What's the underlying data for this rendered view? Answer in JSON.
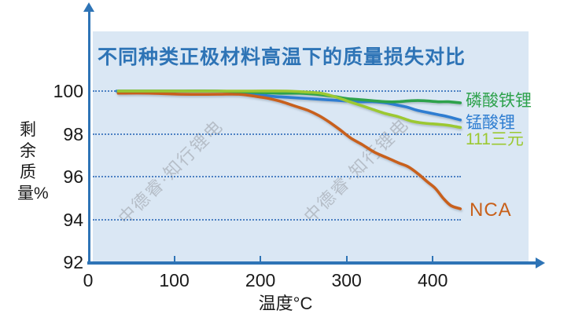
{
  "title": {
    "text": "不同种类正极材料高温下的质量损失对比",
    "color": "#2E74B6"
  },
  "watermark": {
    "text": "中德睿·知行锂电"
  },
  "axes": {
    "x_label": "温度°C",
    "y_label": "剩余质量%",
    "axis_color": "#2E74B6",
    "grid_color": "#3E76BE",
    "tick_text_color": "#1a1a1a",
    "panel_bg": "#DAE7F4"
  },
  "chart_data": {
    "type": "line",
    "title": "不同种类正极材料高温下的质量损失对比",
    "xlabel": "温度°C",
    "ylabel": "剩余质量%",
    "x_ticks": [
      0,
      100,
      200,
      300,
      400
    ],
    "y_ticks": [
      92,
      94,
      96,
      98,
      100
    ],
    "xlim": [
      0,
      525
    ],
    "ylim": [
      92,
      102.8
    ],
    "grid": "horizontal dotted lines at 94, 96, 98, 100",
    "legend_position": "labels at right ends of curves",
    "series": [
      {
        "name": "锰酸锂",
        "color": "#2E7DD1",
        "x": [
          33,
          70,
          110,
          150,
          175,
          195,
          215,
          235,
          255,
          275,
          295,
          315,
          330,
          345,
          358,
          370,
          382,
          394,
          406,
          418,
          432
        ],
        "y": [
          100,
          100,
          100,
          100,
          99.95,
          99.85,
          99.75,
          99.7,
          99.65,
          99.6,
          99.55,
          99.5,
          99.5,
          99.45,
          99.35,
          99.25,
          99.1,
          99.0,
          98.9,
          98.8,
          98.65
        ]
      },
      {
        "name": "NCA",
        "color": "#C8601A",
        "x": [
          35,
          70,
          110,
          150,
          175,
          195,
          210,
          225,
          240,
          255,
          268,
          280,
          292,
          305,
          318,
          332,
          346,
          360,
          372,
          384,
          394,
          403,
          412,
          421,
          432
        ],
        "y": [
          99.9,
          99.9,
          99.85,
          99.85,
          99.85,
          99.75,
          99.65,
          99.5,
          99.3,
          99.1,
          98.85,
          98.55,
          98.2,
          97.8,
          97.5,
          97.15,
          96.9,
          96.65,
          96.45,
          96.1,
          95.75,
          95.45,
          95.0,
          94.65,
          94.5
        ]
      },
      {
        "name": "磷酸铁锂",
        "color": "#2EA24C",
        "x": [
          35,
          70,
          110,
          150,
          190,
          220,
          245,
          265,
          285,
          300,
          315,
          330,
          345,
          360,
          375,
          390,
          405,
          418,
          432
        ],
        "y": [
          100,
          100,
          100,
          100,
          99.95,
          99.9,
          99.9,
          99.85,
          99.75,
          99.65,
          99.6,
          99.55,
          99.5,
          99.5,
          99.55,
          99.55,
          99.5,
          99.5,
          99.45
        ]
      },
      {
        "name": "111三元",
        "color": "#9CC831",
        "x": [
          35,
          70,
          110,
          150,
          190,
          230,
          255,
          270,
          285,
          300,
          315,
          330,
          345,
          360,
          375,
          390,
          405,
          418,
          432
        ],
        "y": [
          100,
          100,
          100,
          100,
          100,
          100,
          99.95,
          99.9,
          99.75,
          99.55,
          99.35,
          99.15,
          98.95,
          98.8,
          98.6,
          98.5,
          98.45,
          98.4,
          98.3
        ]
      }
    ]
  },
  "legend_order_note": "series index: 0=锰酸锂(blue) 1=NCA(orange) 2=磷酸铁锂(green) 3=111三元(yellow-green)"
}
